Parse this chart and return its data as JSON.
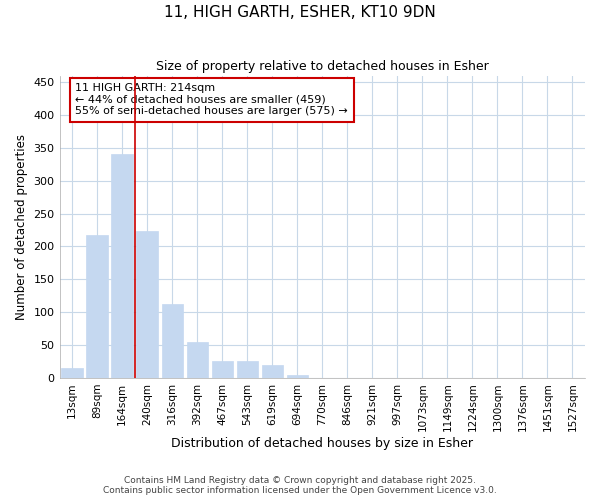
{
  "title": "11, HIGH GARTH, ESHER, KT10 9DN",
  "subtitle": "Size of property relative to detached houses in Esher",
  "xlabel": "Distribution of detached houses by size in Esher",
  "ylabel": "Number of detached properties",
  "categories": [
    "13sqm",
    "89sqm",
    "164sqm",
    "240sqm",
    "316sqm",
    "392sqm",
    "467sqm",
    "543sqm",
    "619sqm",
    "694sqm",
    "770sqm",
    "846sqm",
    "921sqm",
    "997sqm",
    "1073sqm",
    "1149sqm",
    "1224sqm",
    "1300sqm",
    "1376sqm",
    "1451sqm",
    "1527sqm"
  ],
  "values": [
    15,
    217,
    340,
    224,
    113,
    55,
    26,
    25,
    20,
    5,
    0,
    0,
    0,
    0,
    0,
    0,
    0,
    0,
    0,
    0,
    0
  ],
  "bar_color": "#c5d8f0",
  "bar_edge_color": "#c5d8f0",
  "vline_color": "#cc0000",
  "annotation_text": "11 HIGH GARTH: 214sqm\n← 44% of detached houses are smaller (459)\n55% of semi-detached houses are larger (575) →",
  "annotation_box_color": "#cc0000",
  "ylim": [
    0,
    460
  ],
  "yticks": [
    0,
    50,
    100,
    150,
    200,
    250,
    300,
    350,
    400,
    450
  ],
  "bg_color": "#ffffff",
  "grid_color": "#c8d8e8",
  "footer_line1": "Contains HM Land Registry data © Crown copyright and database right 2025.",
  "footer_line2": "Contains public sector information licensed under the Open Government Licence v3.0."
}
